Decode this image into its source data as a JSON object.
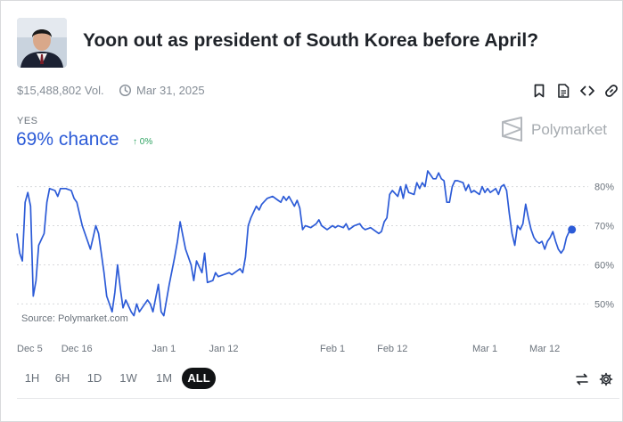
{
  "market": {
    "title": "Yoon out as president of South Korea before April?",
    "volume": "$15,488,802 Vol.",
    "end_date": "Mar 31, 2025",
    "outcome_label": "YES",
    "chance": "69% chance",
    "change": "0%",
    "brand": "Polymarket",
    "source": "Source: Polymarket.com"
  },
  "icons": {
    "bookmark": "bookmark-icon",
    "document": "document-icon",
    "embed": "code-icon",
    "link": "link-icon",
    "swap": "swap-arrows-icon",
    "settings": "gear-icon"
  },
  "ranges": [
    {
      "label": "1H",
      "active": false
    },
    {
      "label": "6H",
      "active": false
    },
    {
      "label": "1D",
      "active": false
    },
    {
      "label": "1W",
      "active": false
    },
    {
      "label": "1M",
      "active": false
    },
    {
      "label": "ALL",
      "active": true
    }
  ],
  "colors": {
    "line": "#2c5bd7",
    "up": "#2fa362",
    "grid": "#d8d9dc",
    "tick": "#6b737c"
  },
  "chart_data": {
    "type": "line",
    "x_start": "2024-12-05",
    "x_end": "2025-03-20",
    "ylim": [
      46,
      84
    ],
    "yticks": [
      50,
      60,
      70,
      80
    ],
    "ytick_labels": [
      "50%",
      "60%",
      "70%",
      "80%"
    ],
    "xticks": [
      "2024-12-05",
      "2024-12-16",
      "2025-01-01",
      "2025-01-12",
      "2025-02-01",
      "2025-02-12",
      "2025-03-01",
      "2025-03-12"
    ],
    "xtick_labels": [
      "Dec 5",
      "Dec 16",
      "Jan 1",
      "Jan 12",
      "Feb 1",
      "Feb 12",
      "Mar 1",
      "Mar 12"
    ],
    "grid": true,
    "series": [
      {
        "values": [
          [
            "2024-12-05",
            68
          ],
          [
            "2024-12-05T12",
            63
          ],
          [
            "2024-12-06",
            61
          ],
          [
            "2024-12-06T12",
            76
          ],
          [
            "2024-12-07",
            78.5
          ],
          [
            "2024-12-07T12",
            75
          ],
          [
            "2024-12-08",
            52
          ],
          [
            "2024-12-08T12",
            56
          ],
          [
            "2024-12-09",
            65
          ],
          [
            "2024-12-10",
            68
          ],
          [
            "2024-12-10T12",
            76
          ],
          [
            "2024-12-11",
            79.5
          ],
          [
            "2024-12-12",
            79
          ],
          [
            "2024-12-12T12",
            77.5
          ],
          [
            "2024-12-13",
            79.5
          ],
          [
            "2024-12-14",
            79.5
          ],
          [
            "2024-12-15",
            79
          ],
          [
            "2024-12-15T12",
            77
          ],
          [
            "2024-12-16",
            76
          ],
          [
            "2024-12-17",
            70
          ],
          [
            "2024-12-18",
            66
          ],
          [
            "2024-12-18T12",
            64
          ],
          [
            "2024-12-19",
            67
          ],
          [
            "2024-12-19T12",
            70
          ],
          [
            "2024-12-20",
            68
          ],
          [
            "2024-12-21",
            58
          ],
          [
            "2024-12-21T12",
            52
          ],
          [
            "2024-12-22",
            50
          ],
          [
            "2024-12-22T12",
            48
          ],
          [
            "2024-12-23",
            53
          ],
          [
            "2024-12-23T12",
            60
          ],
          [
            "2024-12-24",
            54
          ],
          [
            "2024-12-24T12",
            49
          ],
          [
            "2024-12-25",
            51
          ],
          [
            "2024-12-26",
            48
          ],
          [
            "2024-12-26T12",
            47
          ],
          [
            "2024-12-27",
            50
          ],
          [
            "2024-12-27T12",
            48
          ],
          [
            "2024-12-28",
            49
          ],
          [
            "2024-12-29",
            51
          ],
          [
            "2024-12-29T12",
            50
          ],
          [
            "2024-12-30",
            48
          ],
          [
            "2024-12-31",
            55
          ],
          [
            "2024-12-31T12",
            48
          ],
          [
            "2025-01-01",
            47
          ],
          [
            "2025-01-02",
            55
          ],
          [
            "2025-01-03",
            62
          ],
          [
            "2025-01-03T12",
            66
          ],
          [
            "2025-01-04",
            71
          ],
          [
            "2025-01-05",
            64
          ],
          [
            "2025-01-05T12",
            62
          ],
          [
            "2025-01-06",
            60
          ],
          [
            "2025-01-06T12",
            56
          ],
          [
            "2025-01-07",
            61
          ],
          [
            "2025-01-08",
            58
          ],
          [
            "2025-01-08T12",
            63
          ],
          [
            "2025-01-09",
            55.5
          ],
          [
            "2025-01-10",
            56
          ],
          [
            "2025-01-10T12",
            58
          ],
          [
            "2025-01-11",
            57
          ],
          [
            "2025-01-12",
            57.5
          ],
          [
            "2025-01-13",
            58
          ],
          [
            "2025-01-13T12",
            57.5
          ],
          [
            "2025-01-14",
            58
          ],
          [
            "2025-01-15",
            59
          ],
          [
            "2025-01-15T12",
            58
          ],
          [
            "2025-01-16",
            62
          ],
          [
            "2025-01-16T12",
            70
          ],
          [
            "2025-01-17",
            72
          ],
          [
            "2025-01-18",
            75
          ],
          [
            "2025-01-18T12",
            74
          ],
          [
            "2025-01-19",
            75.5
          ],
          [
            "2025-01-20",
            77
          ],
          [
            "2025-01-21",
            77.5
          ],
          [
            "2025-01-22",
            76.5
          ],
          [
            "2025-01-22T12",
            76
          ],
          [
            "2025-01-23",
            77.5
          ],
          [
            "2025-01-23T12",
            76.5
          ],
          [
            "2025-01-24",
            77.5
          ],
          [
            "2025-01-25",
            75
          ],
          [
            "2025-01-25T12",
            76.5
          ],
          [
            "2025-01-26",
            74.5
          ],
          [
            "2025-01-26T12",
            69
          ],
          [
            "2025-01-27",
            70
          ],
          [
            "2025-01-28",
            69.5
          ],
          [
            "2025-01-29",
            70.5
          ],
          [
            "2025-01-29T12",
            71.5
          ],
          [
            "2025-01-30",
            70
          ],
          [
            "2025-01-31",
            69
          ],
          [
            "2025-02-01",
            70
          ],
          [
            "2025-02-01T12",
            69.5
          ],
          [
            "2025-02-02",
            70
          ],
          [
            "2025-02-03",
            69.5
          ],
          [
            "2025-02-03T12",
            70.5
          ],
          [
            "2025-02-04",
            69
          ],
          [
            "2025-02-05",
            70
          ],
          [
            "2025-02-06",
            70.5
          ],
          [
            "2025-02-06T12",
            69.5
          ],
          [
            "2025-02-07",
            69
          ],
          [
            "2025-02-08",
            69.5
          ],
          [
            "2025-02-09",
            68.5
          ],
          [
            "2025-02-09T12",
            68
          ],
          [
            "2025-02-10",
            68.5
          ],
          [
            "2025-02-10T12",
            71
          ],
          [
            "2025-02-11",
            72
          ],
          [
            "2025-02-11T12",
            78
          ],
          [
            "2025-02-12",
            79
          ],
          [
            "2025-02-13",
            77.5
          ],
          [
            "2025-02-13T12",
            80
          ],
          [
            "2025-02-14",
            77
          ],
          [
            "2025-02-14T12",
            80.5
          ],
          [
            "2025-02-15",
            78.5
          ],
          [
            "2025-02-16",
            78
          ],
          [
            "2025-02-16T12",
            81
          ],
          [
            "2025-02-17",
            79.5
          ],
          [
            "2025-02-17T12",
            81
          ],
          [
            "2025-02-18",
            80
          ],
          [
            "2025-02-18T12",
            84
          ],
          [
            "2025-02-19",
            83
          ],
          [
            "2025-02-19T12",
            82
          ],
          [
            "2025-02-20",
            82
          ],
          [
            "2025-02-20T12",
            83.5
          ],
          [
            "2025-02-21",
            82
          ],
          [
            "2025-02-21T12",
            81.5
          ],
          [
            "2025-02-22",
            76
          ],
          [
            "2025-02-22T12",
            76
          ],
          [
            "2025-02-23",
            80
          ],
          [
            "2025-02-23T12",
            81.5
          ],
          [
            "2025-02-24",
            81.5
          ],
          [
            "2025-02-25",
            81
          ],
          [
            "2025-02-25T12",
            79
          ],
          [
            "2025-02-26",
            80.5
          ],
          [
            "2025-02-26T12",
            78.5
          ],
          [
            "2025-02-27",
            79
          ],
          [
            "2025-02-28",
            78
          ],
          [
            "2025-02-28T12",
            80
          ],
          [
            "2025-03-01",
            78.5
          ],
          [
            "2025-03-01T12",
            79.5
          ],
          [
            "2025-03-02",
            78.5
          ],
          [
            "2025-03-03",
            79.5
          ],
          [
            "2025-03-03T12",
            78
          ],
          [
            "2025-03-04",
            80
          ],
          [
            "2025-03-04T12",
            80.5
          ],
          [
            "2025-03-05",
            79
          ],
          [
            "2025-03-05T12",
            73
          ],
          [
            "2025-03-06",
            68
          ],
          [
            "2025-03-06T12",
            65
          ],
          [
            "2025-03-07",
            70
          ],
          [
            "2025-03-07T12",
            69
          ],
          [
            "2025-03-08",
            70.5
          ],
          [
            "2025-03-08T12",
            75.5
          ],
          [
            "2025-03-09",
            72
          ],
          [
            "2025-03-09T12",
            69
          ],
          [
            "2025-03-10",
            67
          ],
          [
            "2025-03-10T12",
            66
          ],
          [
            "2025-03-11",
            65.5
          ],
          [
            "2025-03-11T12",
            66
          ],
          [
            "2025-03-12",
            64
          ],
          [
            "2025-03-12T12",
            66
          ],
          [
            "2025-03-13",
            67
          ],
          [
            "2025-03-13T12",
            68.5
          ],
          [
            "2025-03-14",
            66
          ],
          [
            "2025-03-14T12",
            64
          ],
          [
            "2025-03-15",
            63
          ],
          [
            "2025-03-15T12",
            64
          ],
          [
            "2025-03-16",
            67
          ],
          [
            "2025-03-16T12",
            68.5
          ],
          [
            "2025-03-17",
            69
          ]
        ]
      }
    ]
  }
}
